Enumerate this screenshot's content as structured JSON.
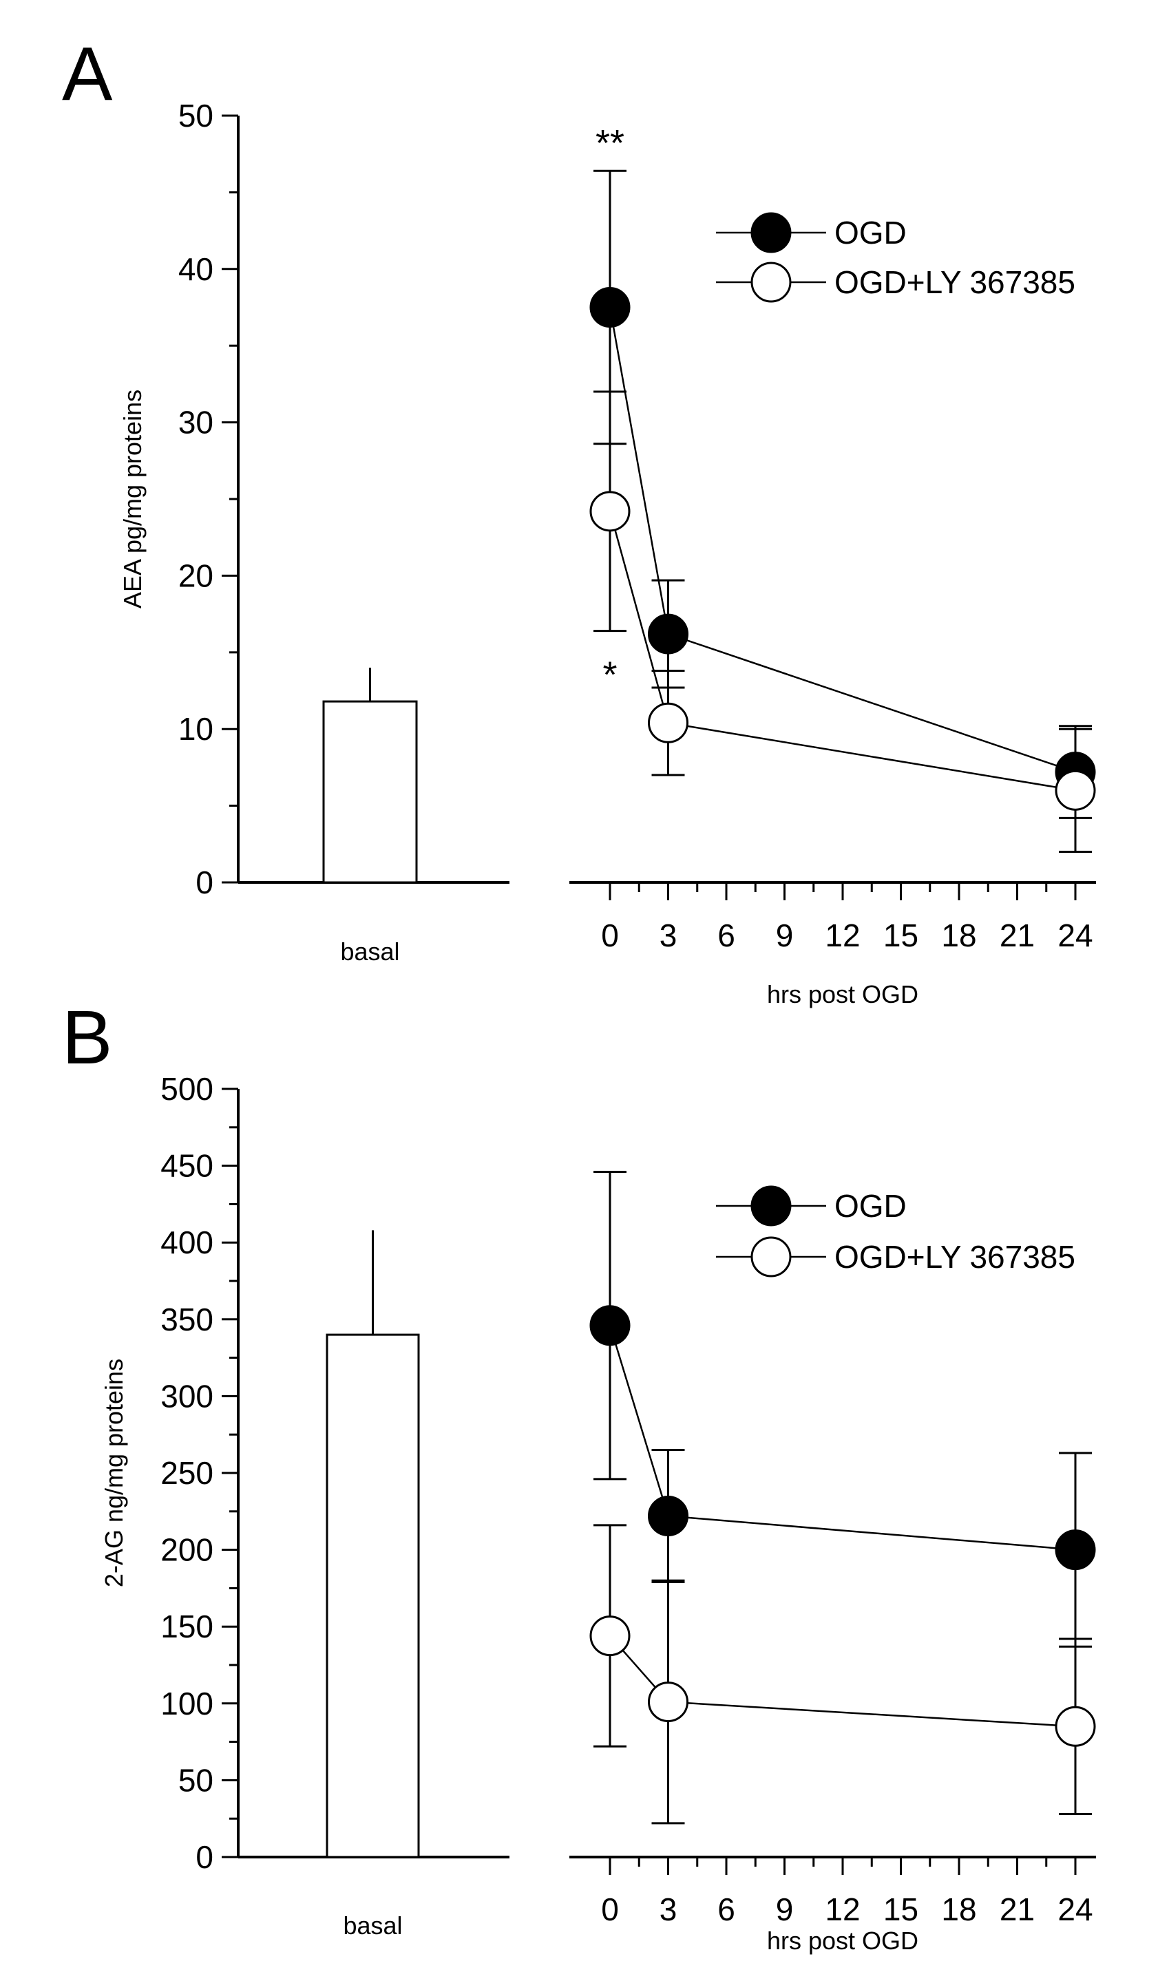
{
  "chart_data": [
    {
      "panel": "A",
      "type": "line",
      "ylabel": "AEA pg/mg proteins",
      "xlabel": "hrs post OGD",
      "ylim": [
        0,
        50
      ],
      "yticks": [
        0,
        10,
        20,
        30,
        40,
        50
      ],
      "xlim": [
        -2,
        26
      ],
      "xticks": [
        0,
        3,
        6,
        9,
        12,
        15,
        18,
        21,
        24
      ],
      "basal": {
        "label": "basal",
        "value": 11.8,
        "error": 2.2
      },
      "series": [
        {
          "name": "OGD",
          "marker": "filled",
          "x": [
            0,
            3,
            24
          ],
          "y": [
            37.5,
            16.2,
            7.2
          ],
          "err": [
            8.9,
            3.5,
            3.0
          ]
        },
        {
          "name": "OGD+LY 367385",
          "marker": "open",
          "x": [
            0,
            3,
            24
          ],
          "y": [
            24.2,
            10.4,
            6.0
          ],
          "err": [
            7.8,
            3.4,
            4.0
          ]
        }
      ],
      "annotations": [
        {
          "text": "**",
          "series": "OGD",
          "x": 0
        },
        {
          "text": "*",
          "series": "OGD+LY 367385",
          "x": 0
        }
      ]
    },
    {
      "panel": "B",
      "type": "line",
      "ylabel": "2-AG ng/mg proteins",
      "xlabel": "hrs post OGD",
      "ylim": [
        0,
        500
      ],
      "yticks": [
        0,
        50,
        100,
        150,
        200,
        250,
        300,
        350,
        400,
        450,
        500
      ],
      "xlim": [
        -2,
        26
      ],
      "xticks": [
        0,
        3,
        6,
        9,
        12,
        15,
        18,
        21,
        24
      ],
      "basal": {
        "label": "basal",
        "value": 340,
        "error": 68
      },
      "series": [
        {
          "name": "OGD",
          "marker": "filled",
          "x": [
            0,
            3,
            24
          ],
          "y": [
            346,
            222,
            200
          ],
          "err": [
            100,
            43,
            63
          ]
        },
        {
          "name": "OGD+LY 367385",
          "marker": "open",
          "x": [
            0,
            3,
            24
          ],
          "y": [
            144,
            101,
            85
          ],
          "err": [
            72,
            79,
            57
          ]
        }
      ],
      "annotations": []
    }
  ]
}
